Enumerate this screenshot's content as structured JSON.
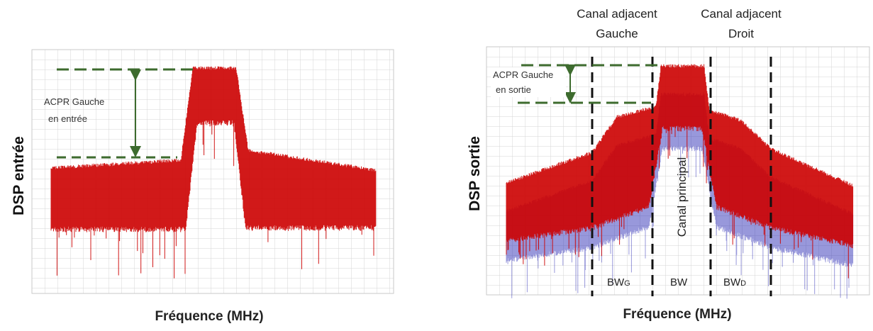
{
  "chart_data": [
    {
      "type": "area",
      "ylabel": "DSP entrée",
      "xlabel": "Fréquence (MHz)",
      "series_color": "#cc0000",
      "grid": true,
      "annotations": [
        {
          "kind": "arrow",
          "line1": "ACPR Gauche",
          "line2": "en entrée"
        }
      ]
    },
    {
      "type": "area",
      "ylabel": "DSP sortie",
      "xlabel": "Fréquence (MHz)",
      "series_colors": [
        "#cc0000",
        "#1b1bb0"
      ],
      "grid": true,
      "regions": [
        {
          "head1": "Canal adjacent",
          "head2": "Gauche",
          "bw_main": "BW",
          "bw_sub": "G"
        },
        {
          "label": "Canal principal",
          "bw_main": "BW"
        },
        {
          "head1": "Canal adjacent",
          "head2": "Droit",
          "bw_main": "BW",
          "bw_sub": "D"
        }
      ],
      "annotations": [
        {
          "kind": "arrow",
          "line1": "ACPR Gauche",
          "line2": "en sortie"
        }
      ]
    }
  ]
}
